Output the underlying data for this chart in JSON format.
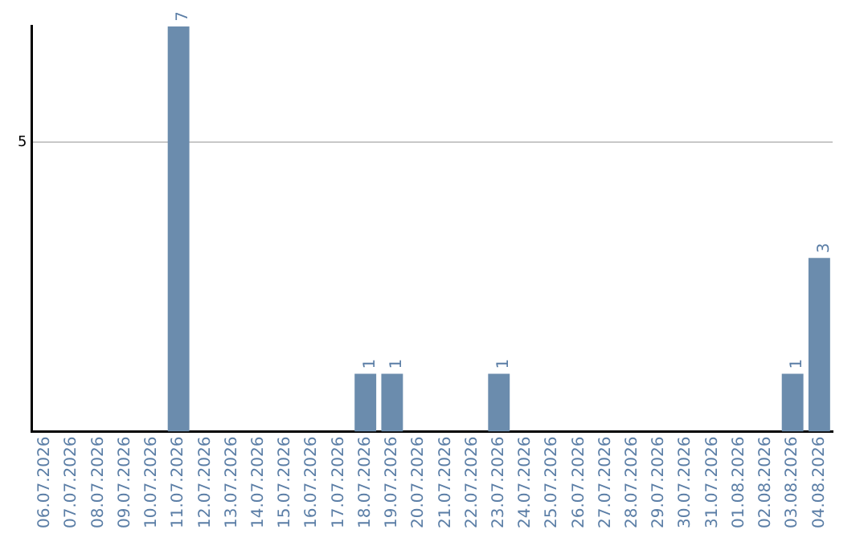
{
  "chart_data": {
    "type": "bar",
    "categories": [
      "06.07.2026",
      "07.07.2026",
      "08.07.2026",
      "09.07.2026",
      "10.07.2026",
      "11.07.2026",
      "12.07.2026",
      "13.07.2026",
      "14.07.2026",
      "15.07.2026",
      "16.07.2026",
      "17.07.2026",
      "18.07.2026",
      "19.07.2026",
      "20.07.2026",
      "21.07.2026",
      "22.07.2026",
      "23.07.2026",
      "24.07.2026",
      "25.07.2026",
      "26.07.2026",
      "27.07.2026",
      "28.07.2026",
      "29.07.2026",
      "30.07.2026",
      "31.07.2026",
      "01.08.2026",
      "02.08.2026",
      "03.08.2026",
      "04.08.2026"
    ],
    "values": [
      0,
      0,
      0,
      0,
      0,
      7,
      0,
      0,
      0,
      0,
      0,
      0,
      1,
      1,
      0,
      0,
      0,
      1,
      0,
      0,
      0,
      0,
      0,
      0,
      0,
      0,
      0,
      0,
      1,
      3
    ],
    "value_labels": [
      null,
      null,
      null,
      null,
      null,
      "7",
      null,
      null,
      null,
      null,
      null,
      null,
      "1",
      "1",
      null,
      null,
      null,
      "1",
      null,
      null,
      null,
      null,
      null,
      null,
      null,
      null,
      null,
      null,
      "1",
      "3"
    ],
    "color": "#6b8cad",
    "ylim": [
      0,
      7
    ],
    "yticks": [
      5
    ],
    "grid": "y",
    "legend": false
  }
}
